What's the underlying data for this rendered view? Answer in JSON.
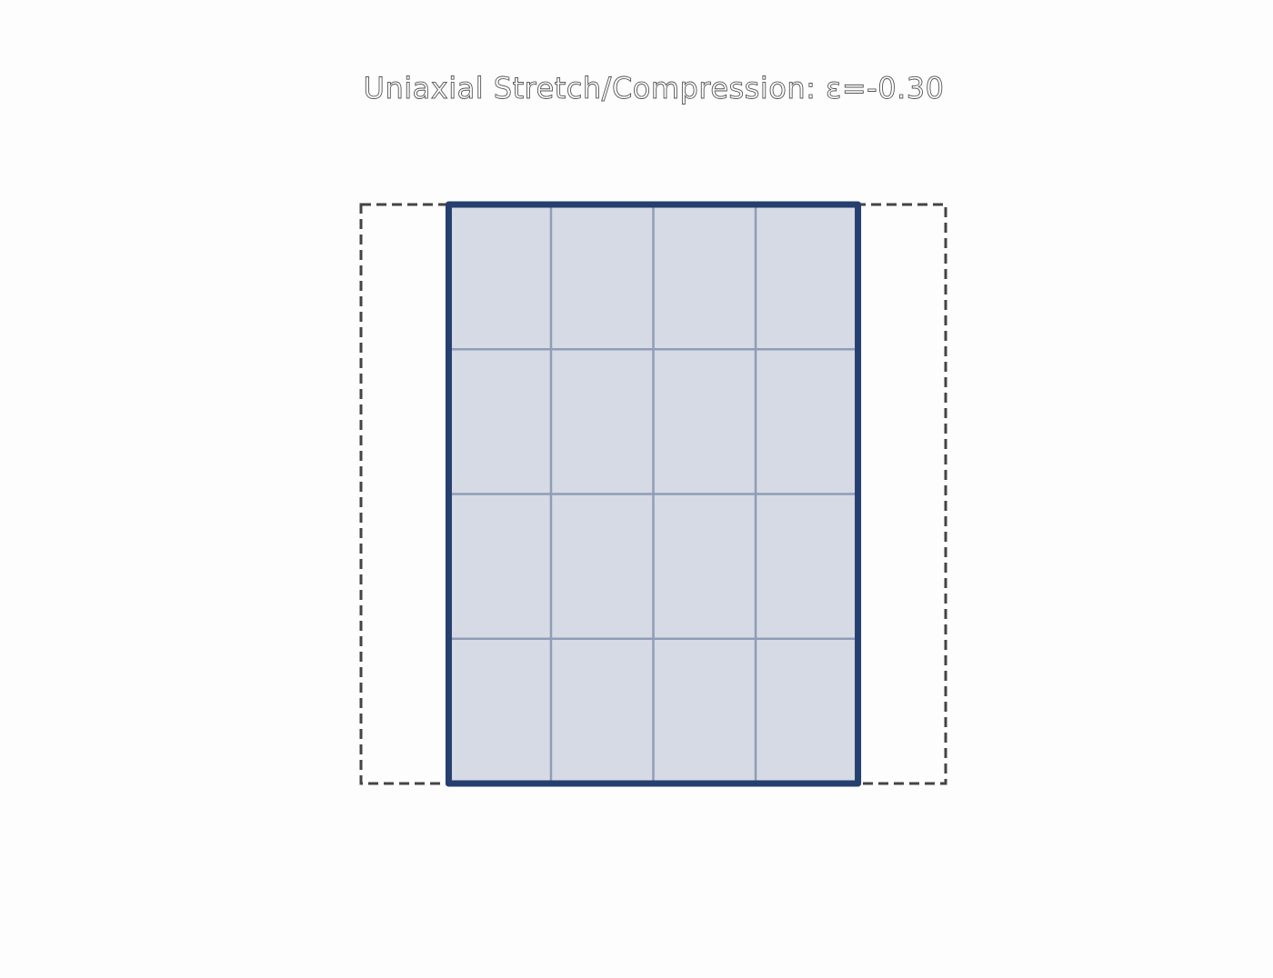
{
  "title": "Uniaxial Stretch/Compression: ε=-0.30",
  "deformation": {
    "type": "uniaxial",
    "axis": "horizontal",
    "strain": -0.3
  },
  "mesh": {
    "rows": 4,
    "cols": 4
  },
  "colors": {
    "background": "#fdfdfd",
    "original_outline": "#444444",
    "deformed_outline": "#253f6e",
    "deformed_fill": "#d5dae4",
    "grid_lines": "#8f9db8",
    "title_fill": "#ffffff",
    "title_stroke": "#555555"
  }
}
